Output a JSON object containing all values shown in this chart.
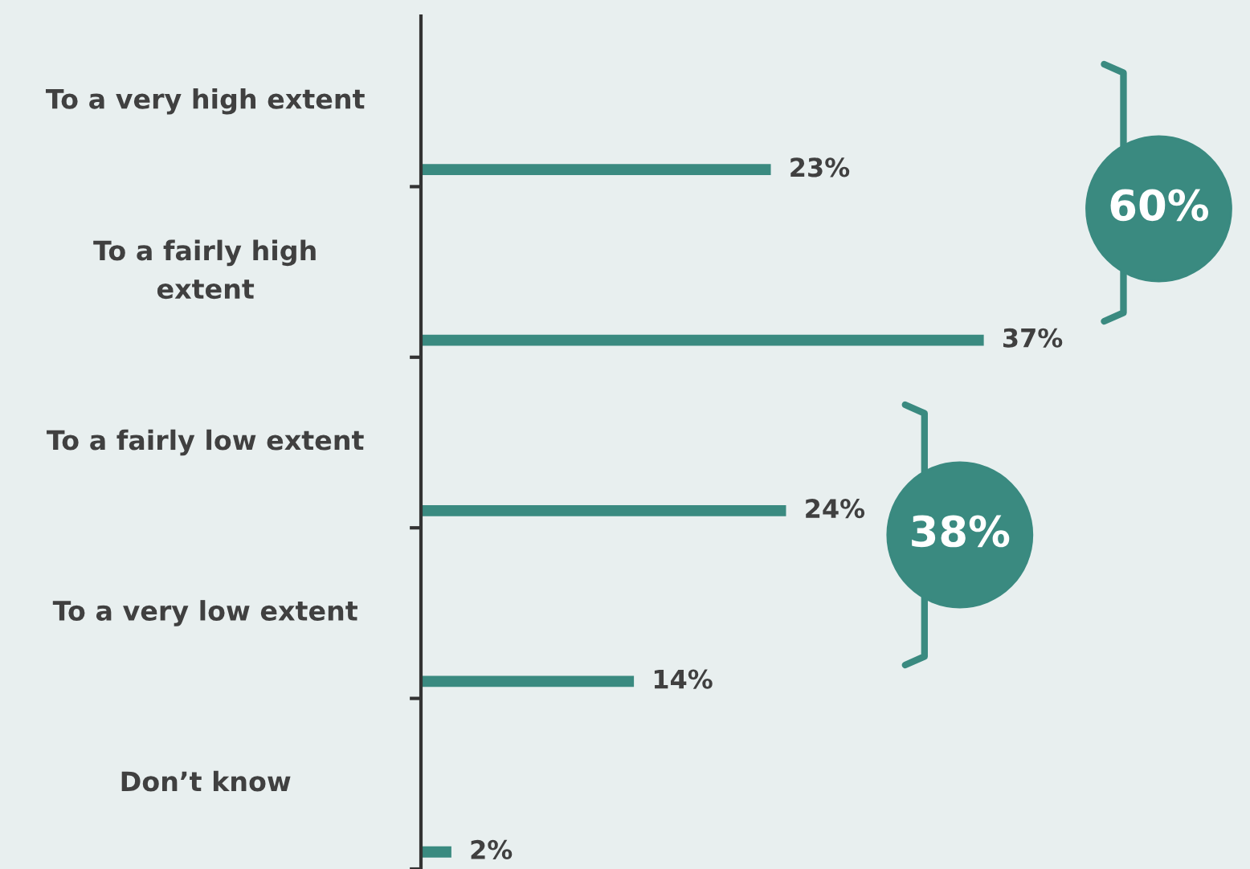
{
  "chart_data": {
    "type": "bar",
    "orientation": "horizontal",
    "categories": [
      "To a very high extent",
      "To a fairly high\nextent",
      "To a fairly low extent",
      "To a very low extent",
      "Don’t know"
    ],
    "values": [
      23,
      37,
      24,
      14,
      2
    ],
    "value_labels": [
      "23%",
      "37%",
      "24%",
      "14%",
      "2%"
    ],
    "color": "#3a8a80",
    "xlim": [
      0,
      54.5
    ],
    "tick_labels": "y",
    "annotations": [
      "60%",
      "38%"
    ]
  }
}
